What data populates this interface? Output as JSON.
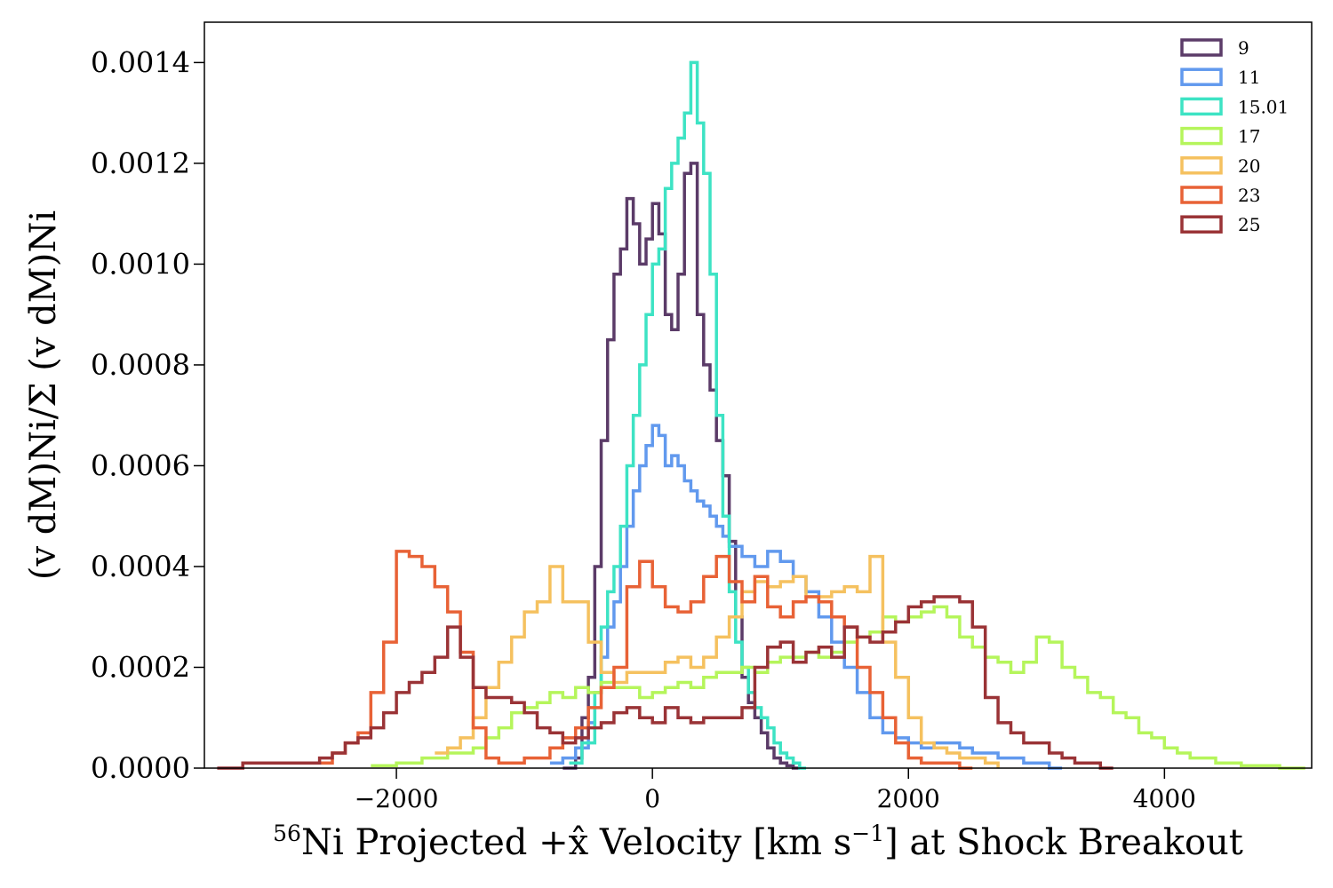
{
  "chart_data": {
    "type": "line",
    "style": "step-histogram",
    "xlabel_sup": "56",
    "xlabel_main": "Ni Projected +x̂ Velocity [km s",
    "xlabel_exp": "−1",
    "xlabel_tail": "] at Shock Breakout",
    "ylabel": "(v dM)Ni/Σ (v dM)Ni",
    "xlim": [
      -3500,
      5150
    ],
    "ylim": [
      0,
      0.00148
    ],
    "xticks": [
      -2000,
      0,
      2000,
      4000
    ],
    "xtick_labels": [
      "−2000",
      "0",
      "2000",
      "4000"
    ],
    "yticks": [
      0,
      0.0002,
      0.0004,
      0.0006,
      0.0008,
      0.001,
      0.0012,
      0.0014
    ],
    "ytick_labels": [
      "0.0000",
      "0.0002",
      "0.0004",
      "0.0006",
      "0.0008",
      "0.0010",
      "0.0012",
      "0.0014"
    ],
    "grid": false,
    "legend_position": "top-right",
    "series": [
      {
        "name": "9",
        "color": "#5b3b68",
        "x": [
          -700,
          -600,
          -550,
          -500,
          -450,
          -400,
          -350,
          -300,
          -250,
          -200,
          -150,
          -100,
          -50,
          0,
          50,
          100,
          150,
          200,
          250,
          300,
          350,
          400,
          450,
          500,
          550,
          600,
          650,
          700,
          750,
          800,
          850,
          900,
          950,
          1000,
          1050,
          1100
        ],
        "y": [
          0,
          2e-05,
          0.0001,
          0.00018,
          0.0004,
          0.00065,
          0.00085,
          0.00098,
          0.00103,
          0.00113,
          0.00108,
          0.001,
          0.00105,
          0.00112,
          0.00106,
          0.0009,
          0.00087,
          0.00098,
          0.00118,
          0.0012,
          0.0009,
          0.0008,
          0.00075,
          0.00065,
          0.00058,
          0.00045,
          0.0003,
          0.00018,
          0.00013,
          0.0001,
          7e-05,
          4e-05,
          2e-05,
          1e-05,
          5e-06,
          0
        ]
      },
      {
        "name": "11",
        "color": "#6199ee",
        "x": [
          -800,
          -700,
          -600,
          -500,
          -450,
          -400,
          -350,
          -300,
          -250,
          -200,
          -150,
          -100,
          -50,
          0,
          50,
          100,
          150,
          200,
          250,
          300,
          350,
          400,
          450,
          500,
          550,
          600,
          700,
          800,
          900,
          1000,
          1100,
          1200,
          1300,
          1400,
          1500,
          1600,
          1700,
          1800,
          1900,
          2000,
          2100,
          2200,
          2300,
          2400,
          2500,
          2600,
          2700,
          2800,
          2900,
          3000,
          3100
        ],
        "y": [
          1e-05,
          2e-05,
          4e-05,
          9e-05,
          0.00015,
          0.00022,
          0.00028,
          0.00033,
          0.0004,
          0.00048,
          0.00055,
          0.0006,
          0.00064,
          0.00068,
          0.00066,
          0.0006,
          0.00062,
          0.0006,
          0.00057,
          0.00055,
          0.00053,
          0.00052,
          0.0005,
          0.00048,
          0.00046,
          0.00044,
          0.00042,
          0.0004,
          0.00043,
          0.00041,
          0.00038,
          0.00035,
          0.0003,
          0.00025,
          0.0002,
          0.00015,
          0.0001,
          7e-05,
          6e-05,
          5e-05,
          4e-05,
          5e-05,
          5e-05,
          4e-05,
          3e-05,
          3e-05,
          2e-05,
          2e-05,
          1e-05,
          1e-05,
          0
        ]
      },
      {
        "name": "15.01",
        "color": "#3de3c4",
        "x": [
          -650,
          -550,
          -450,
          -400,
          -350,
          -300,
          -250,
          -200,
          -150,
          -100,
          -50,
          0,
          50,
          100,
          150,
          200,
          250,
          300,
          350,
          400,
          450,
          500,
          550,
          600,
          650,
          700,
          750,
          800,
          850,
          900,
          950,
          1000,
          1050,
          1100,
          1150
        ],
        "y": [
          1e-05,
          5e-05,
          0.00015,
          0.00028,
          0.00035,
          0.0004,
          0.00048,
          0.0006,
          0.0007,
          0.0008,
          0.0009,
          0.001,
          0.00103,
          0.00115,
          0.0012,
          0.00125,
          0.0013,
          0.0014,
          0.00128,
          0.00118,
          0.00098,
          0.0007,
          0.0005,
          0.00035,
          0.00025,
          0.0002,
          0.00015,
          0.00012,
          0.0001,
          8e-05,
          5e-05,
          3e-05,
          2e-05,
          1e-05,
          0
        ]
      },
      {
        "name": "17",
        "color": "#b5f55b",
        "x": [
          -2200,
          -2000,
          -1800,
          -1600,
          -1400,
          -1300,
          -1200,
          -1100,
          -1000,
          -900,
          -800,
          -700,
          -600,
          -500,
          -400,
          -300,
          -200,
          -100,
          0,
          100,
          200,
          300,
          400,
          500,
          600,
          700,
          800,
          900,
          1000,
          1100,
          1200,
          1300,
          1400,
          1500,
          1600,
          1700,
          1800,
          1900,
          2000,
          2100,
          2200,
          2300,
          2400,
          2500,
          2600,
          2700,
          2800,
          2900,
          3000,
          3100,
          3200,
          3300,
          3400,
          3500,
          3600,
          3700,
          3800,
          3900,
          4000,
          4100,
          4200,
          4300,
          4400,
          4500,
          4600,
          4700,
          4800,
          4900,
          5000
        ],
        "y": [
          5e-06,
          1e-05,
          2e-05,
          3e-05,
          4e-05,
          6e-05,
          8e-05,
          0.00011,
          0.00012,
          0.00013,
          0.00015,
          0.00014,
          0.00016,
          0.00015,
          0.00017,
          0.00016,
          0.00016,
          0.00014,
          0.00015,
          0.00016,
          0.00017,
          0.00016,
          0.00018,
          0.00019,
          0.00019,
          0.0002,
          0.00019,
          0.00021,
          0.00022,
          0.00022,
          0.00023,
          0.00022,
          0.00023,
          0.00025,
          0.00026,
          0.00027,
          0.0003,
          0.00029,
          0.0003,
          0.00031,
          0.00032,
          0.0003,
          0.00026,
          0.00024,
          0.00022,
          0.00021,
          0.00019,
          0.00021,
          0.00026,
          0.00025,
          0.0002,
          0.00018,
          0.00015,
          0.00014,
          0.00011,
          0.0001,
          7e-05,
          6e-05,
          4e-05,
          3e-05,
          2e-05,
          2e-05,
          1e-05,
          1e-05,
          5e-06,
          5e-06,
          5e-06,
          0,
          0
        ]
      },
      {
        "name": "20",
        "color": "#f5c15f",
        "x": [
          -1700,
          -1600,
          -1500,
          -1400,
          -1300,
          -1200,
          -1100,
          -1000,
          -900,
          -800,
          -700,
          -600,
          -500,
          -400,
          -300,
          -200,
          -100,
          0,
          100,
          200,
          300,
          400,
          500,
          600,
          700,
          800,
          900,
          1000,
          1100,
          1200,
          1300,
          1400,
          1500,
          1600,
          1700,
          1800,
          1900,
          2000,
          2100,
          2200,
          2300,
          2400,
          2500,
          2600
        ],
        "y": [
          3e-05,
          4e-05,
          6e-05,
          0.0001,
          0.00016,
          0.00021,
          0.00026,
          0.00031,
          0.00033,
          0.0004,
          0.00033,
          0.00033,
          0.00025,
          0.00019,
          0.00017,
          0.00019,
          0.00019,
          0.00019,
          0.00021,
          0.00022,
          0.0002,
          0.00022,
          0.00026,
          0.0003,
          0.00035,
          0.00037,
          0.00036,
          0.00037,
          0.00038,
          0.00034,
          0.00034,
          0.00035,
          0.00036,
          0.00035,
          0.00042,
          0.00025,
          0.00018,
          0.0001,
          5e-05,
          4e-05,
          3e-05,
          2e-05,
          2e-05,
          1e-05
        ]
      },
      {
        "name": "23",
        "color": "#e86236",
        "x": [
          -2600,
          -2500,
          -2400,
          -2300,
          -2200,
          -2100,
          -2000,
          -1900,
          -1800,
          -1700,
          -1600,
          -1500,
          -1400,
          -1300,
          -1200,
          -1100,
          -1000,
          -900,
          -800,
          -700,
          -600,
          -500,
          -400,
          -300,
          -200,
          -100,
          0,
          100,
          200,
          300,
          400,
          500,
          600,
          700,
          800,
          900,
          1000,
          1100,
          1200,
          1300,
          1400,
          1500,
          1600,
          1700,
          1800,
          1900,
          2000,
          2100,
          2200,
          2300,
          2400
        ],
        "y": [
          1e-05,
          3e-05,
          5e-05,
          7e-05,
          0.00015,
          0.00025,
          0.00043,
          0.00042,
          0.0004,
          0.00036,
          0.00031,
          0.00023,
          8e-05,
          2e-05,
          1e-05,
          1e-05,
          2e-05,
          2e-05,
          4e-05,
          6e-05,
          8e-05,
          0.00012,
          0.00016,
          0.0002,
          0.00036,
          0.00041,
          0.00036,
          0.00032,
          0.00031,
          0.00033,
          0.00038,
          0.00042,
          0.00037,
          0.00033,
          0.00038,
          0.00032,
          0.0003,
          0.00033,
          0.00034,
          0.00033,
          0.0003,
          0.00028,
          0.0002,
          0.00015,
          0.0001,
          5e-05,
          2e-05,
          1e-05,
          1e-05,
          1e-05,
          0
        ]
      },
      {
        "name": "25",
        "color": "#9a3336",
        "x": [
          -3400,
          -3200,
          -3000,
          -2800,
          -2600,
          -2500,
          -2400,
          -2300,
          -2200,
          -2100,
          -2000,
          -1900,
          -1800,
          -1700,
          -1600,
          -1500,
          -1400,
          -1300,
          -1200,
          -1100,
          -1000,
          -900,
          -800,
          -700,
          -600,
          -500,
          -400,
          -300,
          -200,
          -100,
          0,
          100,
          200,
          300,
          400,
          500,
          600,
          700,
          800,
          900,
          1000,
          1100,
          1200,
          1300,
          1400,
          1500,
          1600,
          1700,
          1800,
          1900,
          2000,
          2100,
          2200,
          2300,
          2400,
          2500,
          2600,
          2700,
          2800,
          2900,
          3000,
          3100,
          3200,
          3300,
          3400,
          3500
        ],
        "y": [
          0,
          1e-05,
          1e-05,
          1e-05,
          2e-05,
          3e-05,
          5e-05,
          6e-05,
          8e-05,
          0.00011,
          0.00015,
          0.00017,
          0.00019,
          0.00022,
          0.00028,
          0.00022,
          0.00016,
          0.00014,
          0.00014,
          0.00013,
          0.00011,
          8e-05,
          7e-05,
          5e-05,
          6e-05,
          8e-05,
          9e-05,
          0.00011,
          0.00012,
          0.0001,
          9e-05,
          0.00012,
          0.0001,
          9e-05,
          0.0001,
          0.0001,
          0.0001,
          0.00012,
          0.0002,
          0.00024,
          0.00025,
          0.00021,
          0.00023,
          0.00024,
          0.00022,
          0.00028,
          0.00026,
          0.00025,
          0.00027,
          0.00029,
          0.00032,
          0.00033,
          0.00034,
          0.00034,
          0.00033,
          0.00028,
          0.00014,
          9e-05,
          7e-05,
          5e-05,
          5e-05,
          3e-05,
          2e-05,
          1e-05,
          1e-05,
          0
        ]
      }
    ]
  }
}
